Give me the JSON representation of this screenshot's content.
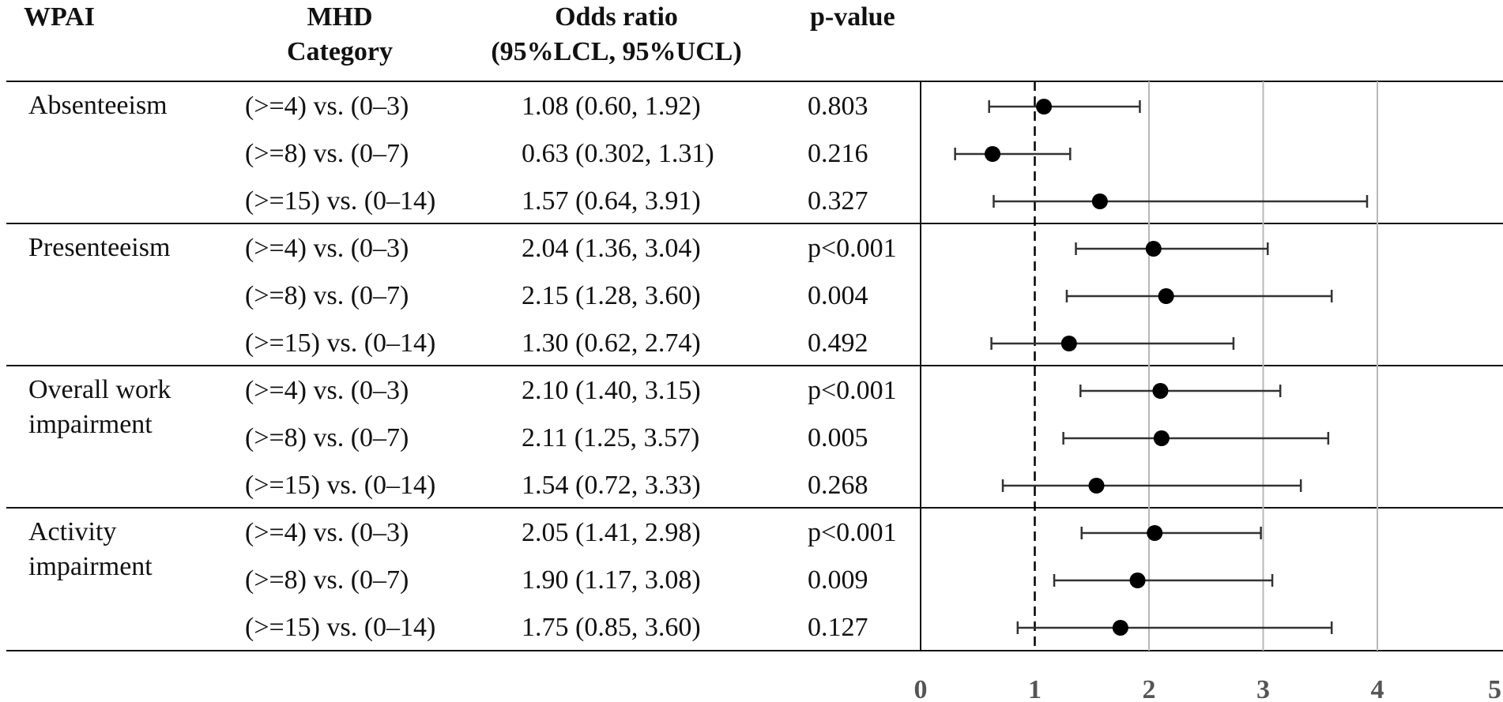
{
  "chart_data": {
    "type": "forest",
    "columns": {
      "wpai": "WPAI",
      "mhd_line1": "MHD",
      "mhd_line2": "Category",
      "or_line1": "Odds ratio",
      "or_line2": "(95%LCL, 95%UCL)",
      "pvalue": "p-value"
    },
    "groups": [
      {
        "label_line1": "Absenteeism",
        "label_line2": "",
        "rows": [
          {
            "category": "(>=4) vs. (0–3)",
            "or_text": "1.08 (0.60, 1.92)",
            "p": "0.803",
            "or": 1.08,
            "lcl": 0.6,
            "ucl": 1.92
          },
          {
            "category": "(>=8) vs. (0–7)",
            "or_text": "0.63 (0.302, 1.31)",
            "p": "0.216",
            "or": 0.63,
            "lcl": 0.302,
            "ucl": 1.31
          },
          {
            "category": "(>=15) vs. (0–14)",
            "or_text": "1.57 (0.64, 3.91)",
            "p": "0.327",
            "or": 1.57,
            "lcl": 0.64,
            "ucl": 3.91
          }
        ]
      },
      {
        "label_line1": "Presenteeism",
        "label_line2": "",
        "rows": [
          {
            "category": "(>=4) vs. (0–3)",
            "or_text": "2.04 (1.36, 3.04)",
            "p": "p<0.001",
            "or": 2.04,
            "lcl": 1.36,
            "ucl": 3.04
          },
          {
            "category": "(>=8) vs. (0–7)",
            "or_text": "2.15 (1.28, 3.60)",
            "p": "0.004",
            "or": 2.15,
            "lcl": 1.28,
            "ucl": 3.6
          },
          {
            "category": "(>=15) vs. (0–14)",
            "or_text": "1.30 (0.62, 2.74)",
            "p": "0.492",
            "or": 1.3,
            "lcl": 0.62,
            "ucl": 2.74
          }
        ]
      },
      {
        "label_line1": "Overall work",
        "label_line2": "impairment",
        "rows": [
          {
            "category": "(>=4) vs. (0–3)",
            "or_text": "2.10 (1.40, 3.15)",
            "p": "p<0.001",
            "or": 2.1,
            "lcl": 1.4,
            "ucl": 3.15
          },
          {
            "category": "(>=8) vs. (0–7)",
            "or_text": "2.11 (1.25, 3.57)",
            "p": "0.005",
            "or": 2.11,
            "lcl": 1.25,
            "ucl": 3.57
          },
          {
            "category": "(>=15) vs. (0–14)",
            "or_text": "1.54 (0.72, 3.33)",
            "p": "0.268",
            "or": 1.54,
            "lcl": 0.72,
            "ucl": 3.33
          }
        ]
      },
      {
        "label_line1": "Activity",
        "label_line2": "impairment",
        "rows": [
          {
            "category": "(>=4) vs. (0–3)",
            "or_text": "2.05 (1.41, 2.98)",
            "p": "p<0.001",
            "or": 2.05,
            "lcl": 1.41,
            "ucl": 2.98
          },
          {
            "category": "(>=8) vs. (0–7)",
            "or_text": "1.90 (1.17, 3.08)",
            "p": "0.009",
            "or": 1.9,
            "lcl": 1.17,
            "ucl": 3.08
          },
          {
            "category": "(>=15) vs. (0–14)",
            "or_text": "1.75 (0.85, 3.60)",
            "p": "0.127",
            "or": 1.75,
            "lcl": 0.85,
            "ucl": 3.6
          }
        ]
      }
    ],
    "x_axis": {
      "range": [
        0,
        5
      ],
      "ticks": [
        0,
        1,
        2,
        3,
        4,
        5
      ],
      "tick_labels": [
        "0",
        "1",
        "2",
        "3",
        "4",
        "5"
      ],
      "reference_line": 1,
      "gridlines": [
        2,
        3,
        4
      ]
    },
    "colors": {
      "text": "#111111",
      "marker": "#000000",
      "ci_line": "#333333",
      "gridline": "#b8b8b8",
      "rule": "#111111",
      "tick_label": "#555555"
    }
  }
}
